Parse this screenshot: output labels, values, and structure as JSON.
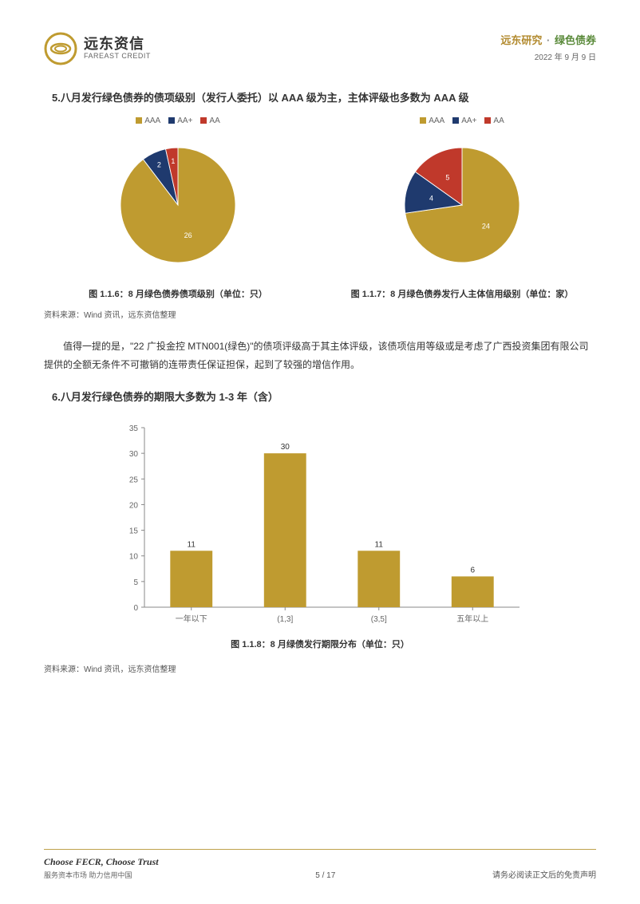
{
  "header": {
    "logo_cn": "远东资信",
    "logo_en": "FAREAST CREDIT",
    "brand": "远东研究",
    "dot": "·",
    "topic": "绿色债券",
    "date": "2022 年 9 月 9 日"
  },
  "section5": {
    "heading": "5.八月发行绿色债券的债项级别（发行人委托）以 AAA 级为主，主体评级也多数为 AAA 级"
  },
  "pie_legend": {
    "items": [
      {
        "label": "AAA",
        "color": "#bf9b30"
      },
      {
        "label": "AA+",
        "color": "#1f3a6e"
      },
      {
        "label": "AA",
        "color": "#c0392b"
      }
    ]
  },
  "pie1": {
    "type": "pie",
    "caption": "图 1.1.6：8 月绿色债券债项级别（单位：只）",
    "slices": [
      {
        "label": "AAA",
        "value": 26,
        "color": "#bf9b30"
      },
      {
        "label": "AA+",
        "value": 2,
        "color": "#1f3a6e"
      },
      {
        "label": "AA",
        "value": 1,
        "color": "#c0392b"
      }
    ],
    "background_color": "#ffffff"
  },
  "pie2": {
    "type": "pie",
    "caption": "图 1.1.7：8 月绿色债券发行人主体信用级别（单位：家）",
    "slices": [
      {
        "label": "AAA",
        "value": 24,
        "color": "#bf9b30"
      },
      {
        "label": "AA+",
        "value": 4,
        "color": "#1f3a6e"
      },
      {
        "label": "AA",
        "value": 5,
        "color": "#c0392b"
      }
    ],
    "background_color": "#ffffff"
  },
  "source_note_1": "资料来源：Wind 资讯，远东资信整理",
  "paragraph": "值得一提的是，\"22 广投金控 MTN001(绿色)\"的债项评级高于其主体评级，该债项信用等级或是考虑了广西投资集团有限公司提供的全额无条件不可撤销的连带责任保证担保，起到了较强的增信作用。",
  "section6": {
    "heading": "6.八月发行绿色债券的期限大多数为 1-3 年（含）"
  },
  "bar_chart": {
    "type": "bar",
    "caption": "图 1.1.8：8 月绿债发行期限分布（单位：只）",
    "categories": [
      "一年以下",
      "(1,3]",
      "(3,5]",
      "五年以上"
    ],
    "values": [
      11,
      30,
      11,
      6
    ],
    "bar_colors": [
      "#bf9b30",
      "#bf9b30",
      "#bf9b30",
      "#bf9b30"
    ],
    "ylim": [
      0,
      35
    ],
    "ytick_step": 5,
    "background_color": "#ffffff",
    "axis_color": "#888888",
    "grid_color": "#cccccc",
    "bar_width": 0.45,
    "label_fontsize": 10
  },
  "source_note_2": "资料来源：Wind 资讯，远东资信整理",
  "footer": {
    "slogan_en": "Choose FECR, Choose Trust",
    "slogan_cn": "服务资本市场  助力信用中国",
    "page": "5 / 17",
    "disclaimer": "请务必阅读正文后的免责声明"
  },
  "colors": {
    "gold": "#bf9b30",
    "navy": "#1f3a6e",
    "red": "#c0392b",
    "text": "#333333",
    "muted": "#666666"
  }
}
